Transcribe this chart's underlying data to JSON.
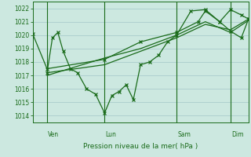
{
  "bg_color": "#cce8e0",
  "grid_color": "#aacccc",
  "line_color": "#1a6b1a",
  "text_color": "#1a6b1a",
  "xlabel": "Pression niveau de la mer( hPa )",
  "ylim": [
    1013.5,
    1022.5
  ],
  "yticks": [
    1014,
    1015,
    1016,
    1017,
    1018,
    1019,
    1020,
    1021,
    1022
  ],
  "xlim": [
    0,
    120
  ],
  "day_vlines_x": [
    8,
    40,
    80,
    110
  ],
  "day_labels": [
    "Ven",
    "Lun",
    "Sam",
    "Dim"
  ],
  "s1x": [
    0,
    8,
    40,
    60,
    80,
    92,
    96,
    104,
    110,
    116,
    120
  ],
  "s1y": [
    1020.1,
    1017.5,
    1018.2,
    1019.5,
    1020.2,
    1021.0,
    1021.8,
    1021.0,
    1021.9,
    1021.5,
    1021.2
  ],
  "s2x": [
    8,
    40,
    60,
    80,
    96,
    110,
    120
  ],
  "s2y": [
    1017.2,
    1017.8,
    1018.8,
    1019.8,
    1020.8,
    1020.4,
    1021.2
  ],
  "s3x": [
    8,
    40,
    60,
    80,
    96,
    110,
    120
  ],
  "s3y": [
    1017.0,
    1018.3,
    1019.0,
    1020.0,
    1021.0,
    1020.2,
    1021.1
  ],
  "s4x": [
    8,
    11,
    14,
    17,
    21,
    25,
    30,
    35,
    40,
    44,
    48,
    52,
    56,
    60,
    65,
    70,
    75,
    80,
    88,
    96,
    104,
    110,
    116,
    120
  ],
  "s4y": [
    1017.2,
    1019.8,
    1020.2,
    1018.8,
    1017.5,
    1017.2,
    1016.0,
    1015.6,
    1014.2,
    1015.5,
    1015.8,
    1016.3,
    1015.2,
    1017.8,
    1018.0,
    1018.5,
    1019.5,
    1020.0,
    1021.8,
    1021.9,
    1021.0,
    1020.3,
    1019.8,
    1021.2
  ]
}
